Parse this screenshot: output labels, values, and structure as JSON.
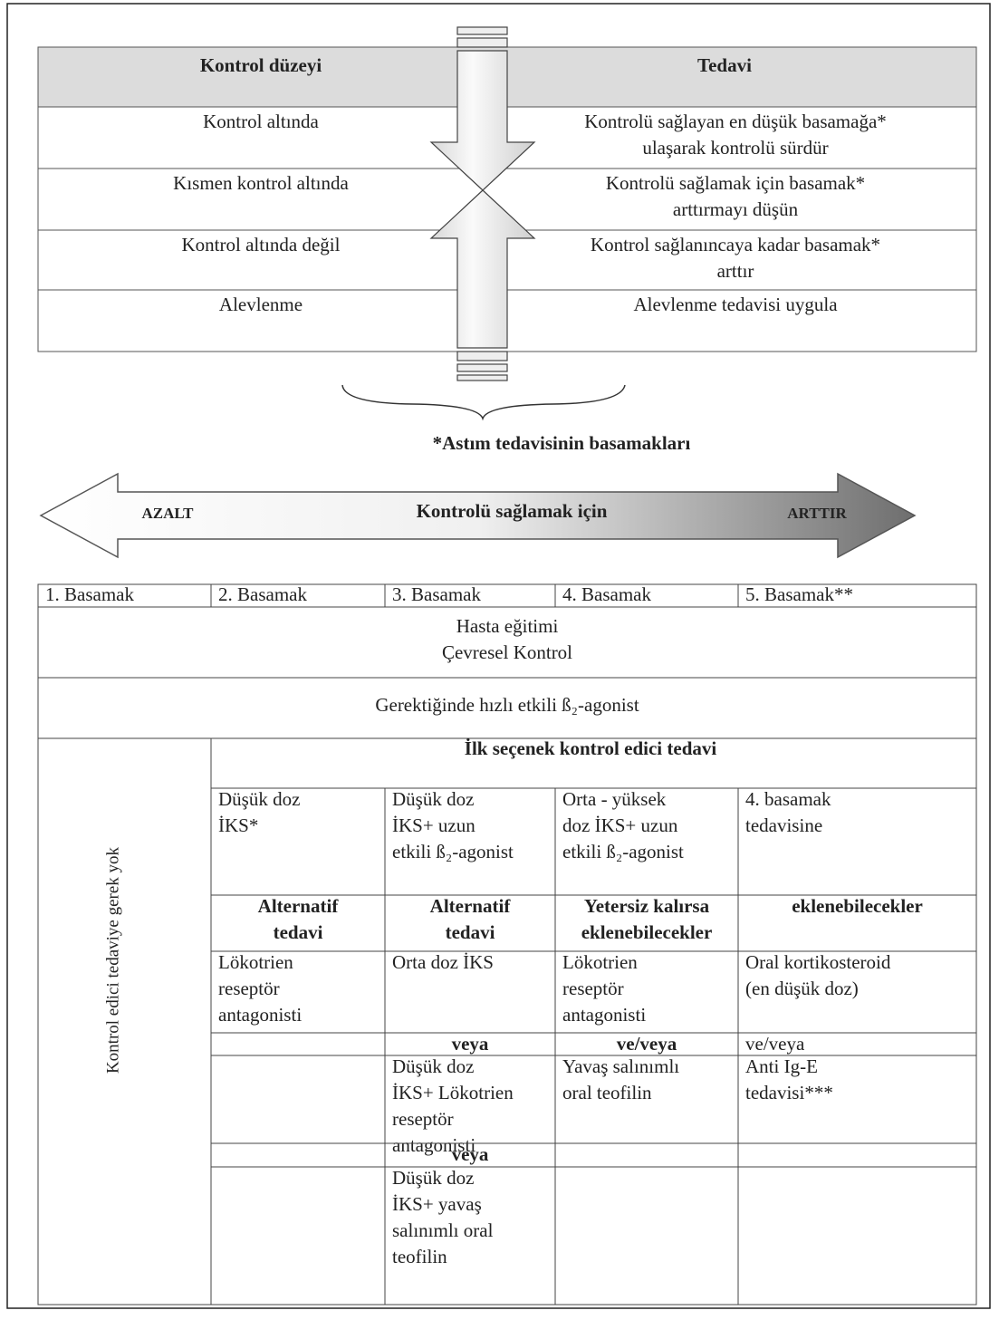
{
  "top_table": {
    "header": [
      "Kontrol düzeyi",
      "Tedavi"
    ],
    "rows": [
      {
        "level": [
          "Kontrol altında"
        ],
        "treatment": [
          "Kontrolü sağlayan en düşük basamağa*",
          "ulaşarak kontrolü sürdür"
        ]
      },
      {
        "level": [
          "Kısmen kontrol altında"
        ],
        "treatment": [
          "Kontrolü sağlamak için basamak*",
          "arttırmayı düşün"
        ]
      },
      {
        "level": [
          "Kontrol altında değil"
        ],
        "treatment": [
          "Kontrol sağlanıncaya kadar basamak*",
          "arttır"
        ]
      },
      {
        "level": [
          "Alevlenme"
        ],
        "treatment": [
          "Alevlenme tedavisi uygula"
        ]
      }
    ]
  },
  "steps_title": "*Astım tedavisinin basamakları",
  "arrow": {
    "left": "AZALT",
    "center": "Kontrolü sağlamak için",
    "right": "ARTTIR"
  },
  "steps_table": {
    "header": [
      "1. Basamak",
      "2. Basamak",
      "3. Basamak",
      "4. Basamak",
      "5. Basamak**"
    ],
    "education": [
      "Hasta eğitimi",
      "Çevresel Kontrol"
    ],
    "reliever": "Gerektiğinde hızlı etkili ß₂-agonist",
    "no_controller": "Kontrol edici tedaviye gerek yok",
    "first_choice_title": "İlk seçenek kontrol edici tedavi",
    "rows": [
      [
        {
          "lines": [
            "Düşük doz",
            "İKS*"
          ]
        },
        {
          "lines": [
            "Düşük doz",
            "İKS+ uzun",
            "etkili ß₂-agonist"
          ]
        },
        {
          "lines": [
            "Orta - yüksek",
            "doz İKS+ uzun",
            "etkili ß₂-agonist"
          ]
        },
        {
          "lines": [
            "4. basamak",
            "tedavisine"
          ]
        }
      ],
      [
        {
          "lines": [
            "Alternatif",
            "tedavi"
          ],
          "bold": true
        },
        {
          "lines": [
            "Alternatif",
            "tedavi"
          ],
          "bold": true
        },
        {
          "lines": [
            "Yetersiz kalırsa",
            "eklenebilecekler"
          ],
          "bold": true
        },
        {
          "lines": [
            "eklenebilecekler"
          ],
          "bold": true
        }
      ],
      [
        {
          "lines": [
            "Lökotrien",
            "reseptör",
            "antagonisti"
          ]
        },
        {
          "lines": [
            "Orta doz İKS"
          ]
        },
        {
          "lines": [
            "Lökotrien",
            "reseptör",
            "antagonisti"
          ]
        },
        {
          "lines": [
            "Oral kortikosteroid",
            "(en düşük doz)"
          ]
        }
      ],
      [
        {
          "lines": []
        },
        {
          "lines": [
            "veya"
          ],
          "bold": true
        },
        {
          "lines": [
            "ve/veya"
          ],
          "bold": true
        },
        {
          "lines": [
            "ve/veya"
          ]
        }
      ],
      [
        {
          "lines": []
        },
        {
          "lines": [
            "Düşük doz",
            "İKS+ Lökotrien",
            "reseptör",
            "antagonisti"
          ]
        },
        {
          "lines": [
            "Yavaş salınımlı",
            "oral teofilin"
          ]
        },
        {
          "lines": [
            "Anti Ig-E",
            "tedavisi***"
          ]
        }
      ],
      [
        {
          "lines": []
        },
        {
          "lines": [
            "veya"
          ],
          "bold": true
        },
        {
          "lines": []
        },
        {
          "lines": []
        }
      ],
      [
        {
          "lines": []
        },
        {
          "lines": [
            "Düşük doz",
            "İKS+ yavaş",
            "salınımlı oral",
            "teofilin"
          ]
        },
        {
          "lines": []
        },
        {
          "lines": []
        }
      ]
    ]
  }
}
